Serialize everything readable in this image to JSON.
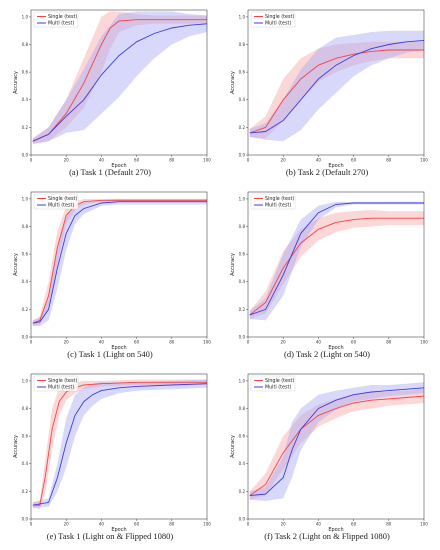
{
  "colors": {
    "single": "#f0444a",
    "multi": "#3d3ddb",
    "single_band": "#f7a6a6",
    "multi_band": "#a9a9f4"
  },
  "chart_data": [
    {
      "type": "line",
      "caption": "(a) Task 1 (Default 270)",
      "xlabel": "Epoch",
      "ylabel": "Accuracy",
      "xlim": [
        0,
        100
      ],
      "ylim": [
        0,
        1.05
      ],
      "xticks": [
        "0",
        "20",
        "40",
        "60",
        "80",
        "100"
      ],
      "yticks": [
        "0.0",
        "0.2",
        "0.4",
        "0.6",
        "0.8",
        "1.0"
      ],
      "legend_position": "top-left",
      "series": [
        {
          "name": "Single (test)",
          "x": [
            1,
            10,
            20,
            30,
            40,
            45,
            50,
            60,
            70,
            80,
            90,
            100
          ],
          "y": [
            0.1,
            0.15,
            0.3,
            0.52,
            0.8,
            0.92,
            0.97,
            0.98,
            0.98,
            0.98,
            0.98,
            0.98
          ],
          "spread": [
            0.02,
            0.05,
            0.1,
            0.18,
            0.2,
            0.15,
            0.08,
            0.04,
            0.03,
            0.03,
            0.03,
            0.03
          ]
        },
        {
          "name": "Multi (test)",
          "x": [
            1,
            10,
            20,
            30,
            40,
            50,
            60,
            70,
            80,
            90,
            100
          ],
          "y": [
            0.1,
            0.15,
            0.28,
            0.4,
            0.58,
            0.72,
            0.82,
            0.88,
            0.92,
            0.94,
            0.95
          ],
          "spread": [
            0.02,
            0.05,
            0.12,
            0.22,
            0.28,
            0.3,
            0.25,
            0.18,
            0.12,
            0.08,
            0.06
          ]
        }
      ]
    },
    {
      "type": "line",
      "caption": "(b) Task 2 (Default 270)",
      "xlabel": "Epoch",
      "ylabel": "Accuracy",
      "xlim": [
        0,
        100
      ],
      "ylim": [
        0,
        1.05
      ],
      "xticks": [
        "0",
        "20",
        "40",
        "60",
        "80",
        "100"
      ],
      "yticks": [
        "0.0",
        "0.2",
        "0.4",
        "0.6",
        "0.8",
        "1.0"
      ],
      "legend_position": "top-left",
      "series": [
        {
          "name": "Single (test)",
          "x": [
            1,
            10,
            20,
            30,
            40,
            50,
            60,
            70,
            80,
            90,
            100
          ],
          "y": [
            0.16,
            0.2,
            0.4,
            0.55,
            0.65,
            0.7,
            0.73,
            0.75,
            0.76,
            0.76,
            0.76
          ],
          "spread": [
            0.03,
            0.08,
            0.15,
            0.15,
            0.12,
            0.1,
            0.08,
            0.07,
            0.06,
            0.06,
            0.06
          ]
        },
        {
          "name": "Multi (test)",
          "x": [
            1,
            10,
            20,
            30,
            40,
            50,
            60,
            70,
            80,
            90,
            100
          ],
          "y": [
            0.16,
            0.17,
            0.25,
            0.4,
            0.55,
            0.65,
            0.72,
            0.77,
            0.8,
            0.82,
            0.83
          ],
          "spread": [
            0.03,
            0.06,
            0.15,
            0.22,
            0.22,
            0.2,
            0.15,
            0.12,
            0.1,
            0.08,
            0.07
          ]
        }
      ]
    },
    {
      "type": "line",
      "caption": "(c) Task 1 (Light on 540)",
      "xlabel": "Epoch",
      "ylabel": "Accuracy",
      "xlim": [
        0,
        100
      ],
      "ylim": [
        0,
        1.05
      ],
      "xticks": [
        "0",
        "20",
        "40",
        "60",
        "80",
        "100"
      ],
      "yticks": [
        "0.0",
        "0.2",
        "0.4",
        "0.6",
        "0.8",
        "1.0"
      ],
      "legend_position": "top-left",
      "series": [
        {
          "name": "Single (test)",
          "x": [
            1,
            5,
            10,
            15,
            20,
            25,
            30,
            40,
            50,
            60,
            100
          ],
          "y": [
            0.1,
            0.12,
            0.3,
            0.65,
            0.88,
            0.95,
            0.98,
            0.99,
            0.99,
            0.99,
            0.99
          ],
          "spread": [
            0.02,
            0.03,
            0.1,
            0.12,
            0.06,
            0.03,
            0.02,
            0.01,
            0.01,
            0.01,
            0.01
          ]
        },
        {
          "name": "Multi (test)",
          "x": [
            1,
            5,
            10,
            15,
            20,
            25,
            30,
            40,
            50,
            60,
            100
          ],
          "y": [
            0.1,
            0.11,
            0.2,
            0.5,
            0.75,
            0.88,
            0.93,
            0.97,
            0.98,
            0.98,
            0.98
          ],
          "spread": [
            0.02,
            0.03,
            0.08,
            0.15,
            0.12,
            0.06,
            0.04,
            0.02,
            0.02,
            0.02,
            0.02
          ]
        }
      ]
    },
    {
      "type": "line",
      "caption": "(d) Task 2 (Light on 540)",
      "xlabel": "Epoch",
      "ylabel": "Accuracy",
      "xlim": [
        0,
        100
      ],
      "ylim": [
        0,
        1.05
      ],
      "xticks": [
        "0",
        "20",
        "40",
        "60",
        "80",
        "100"
      ],
      "yticks": [
        "0.0",
        "0.2",
        "0.4",
        "0.6",
        "0.8",
        "1.0"
      ],
      "legend_position": "top-left",
      "series": [
        {
          "name": "Single (test)",
          "x": [
            1,
            10,
            20,
            30,
            40,
            50,
            60,
            70,
            80,
            100
          ],
          "y": [
            0.16,
            0.25,
            0.5,
            0.68,
            0.78,
            0.83,
            0.85,
            0.86,
            0.86,
            0.86
          ],
          "spread": [
            0.03,
            0.08,
            0.12,
            0.1,
            0.08,
            0.07,
            0.06,
            0.06,
            0.05,
            0.05
          ]
        },
        {
          "name": "Multi (test)",
          "x": [
            1,
            10,
            20,
            30,
            40,
            50,
            60,
            70,
            80,
            100
          ],
          "y": [
            0.16,
            0.2,
            0.45,
            0.75,
            0.9,
            0.96,
            0.97,
            0.97,
            0.97,
            0.97
          ],
          "spread": [
            0.03,
            0.08,
            0.15,
            0.1,
            0.05,
            0.02,
            0.01,
            0.01,
            0.01,
            0.01
          ]
        }
      ]
    },
    {
      "type": "line",
      "caption": "(e) Task 1 (Light on & Flipped 1080)",
      "xlabel": "Epoch",
      "ylabel": "Accuracy",
      "xlim": [
        0,
        100
      ],
      "ylim": [
        0,
        1.05
      ],
      "xticks": [
        "0",
        "20",
        "40",
        "60",
        "80",
        "100"
      ],
      "yticks": [
        "0.0",
        "0.2",
        "0.4",
        "0.6",
        "0.8",
        "1.0"
      ],
      "legend_position": "top-left",
      "series": [
        {
          "name": "Single (test)",
          "x": [
            1,
            5,
            8,
            12,
            16,
            20,
            25,
            30,
            40,
            60,
            100
          ],
          "y": [
            0.1,
            0.1,
            0.3,
            0.65,
            0.85,
            0.92,
            0.95,
            0.97,
            0.98,
            0.99,
            0.99
          ],
          "spread": [
            0.02,
            0.03,
            0.12,
            0.15,
            0.1,
            0.06,
            0.04,
            0.03,
            0.02,
            0.02,
            0.02
          ]
        },
        {
          "name": "Multi (test)",
          "x": [
            1,
            10,
            15,
            20,
            25,
            30,
            35,
            40,
            50,
            60,
            80,
            100
          ],
          "y": [
            0.1,
            0.12,
            0.3,
            0.55,
            0.75,
            0.85,
            0.9,
            0.93,
            0.95,
            0.96,
            0.97,
            0.98
          ],
          "spread": [
            0.02,
            0.03,
            0.1,
            0.18,
            0.15,
            0.1,
            0.08,
            0.06,
            0.04,
            0.03,
            0.03,
            0.03
          ]
        }
      ]
    },
    {
      "type": "line",
      "caption": "(f) Task 2 (Light on & Flipped 1080)",
      "xlabel": "Epoch",
      "ylabel": "Accuracy",
      "xlim": [
        0,
        100
      ],
      "ylim": [
        0,
        1.05
      ],
      "xticks": [
        "0",
        "20",
        "40",
        "60",
        "80",
        "100"
      ],
      "yticks": [
        "0.0",
        "0.2",
        "0.4",
        "0.6",
        "0.8",
        "1.0"
      ],
      "legend_position": "top-left",
      "series": [
        {
          "name": "Single (test)",
          "x": [
            1,
            10,
            20,
            30,
            40,
            50,
            60,
            70,
            80,
            90,
            100
          ],
          "y": [
            0.17,
            0.25,
            0.48,
            0.65,
            0.75,
            0.8,
            0.84,
            0.86,
            0.87,
            0.88,
            0.89
          ],
          "spread": [
            0.03,
            0.08,
            0.12,
            0.1,
            0.08,
            0.07,
            0.06,
            0.06,
            0.05,
            0.05,
            0.05
          ]
        },
        {
          "name": "Multi (test)",
          "x": [
            1,
            10,
            20,
            25,
            30,
            40,
            50,
            60,
            70,
            80,
            90,
            100
          ],
          "y": [
            0.17,
            0.18,
            0.3,
            0.5,
            0.65,
            0.8,
            0.86,
            0.9,
            0.92,
            0.93,
            0.94,
            0.95
          ],
          "spread": [
            0.03,
            0.05,
            0.15,
            0.2,
            0.15,
            0.1,
            0.07,
            0.05,
            0.05,
            0.04,
            0.04,
            0.04
          ]
        }
      ]
    }
  ]
}
